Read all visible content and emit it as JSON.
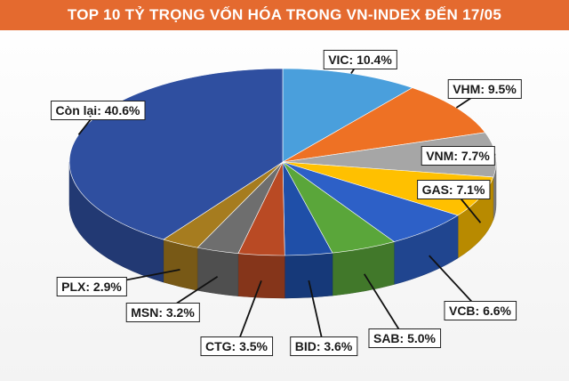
{
  "chart_data": {
    "type": "pie",
    "title": "TOP 10 TỶ TRỌNG VỐN HÓA TRONG VN-INDEX ĐẾN 17/05",
    "slices": [
      {
        "name": "VIC",
        "value": 10.4,
        "label": "VIC: 10.4%",
        "color": "#4a9fdc"
      },
      {
        "name": "VHM",
        "value": 9.5,
        "label": "VHM: 9.5%",
        "color": "#ee7124"
      },
      {
        "name": "VNM",
        "value": 7.7,
        "label": "VNM: 7.7%",
        "color": "#a6a6a6"
      },
      {
        "name": "GAS",
        "value": 7.1,
        "label": "GAS: 7.1%",
        "color": "#ffc000"
      },
      {
        "name": "VCB",
        "value": 6.6,
        "label": "VCB: 6.6%",
        "color": "#2d60c7"
      },
      {
        "name": "SAB",
        "value": 5.0,
        "label": "SAB: 5.0%",
        "color": "#5aa63a"
      },
      {
        "name": "BID",
        "value": 3.6,
        "label": "BID: 3.6%",
        "color": "#1f4fa8"
      },
      {
        "name": "CTG",
        "value": 3.5,
        "label": "CTG: 3.5%",
        "color": "#b94a24"
      },
      {
        "name": "MSN",
        "value": 3.2,
        "label": "MSN: 3.2%",
        "color": "#6e6e6e"
      },
      {
        "name": "PLX",
        "value": 2.9,
        "label": "PLX: 2.9%",
        "color": "#a67c1f"
      },
      {
        "name": "Còn lại",
        "value": 40.6,
        "label": "Còn lại: 40.6%",
        "color": "#2f4fa0"
      }
    ]
  }
}
